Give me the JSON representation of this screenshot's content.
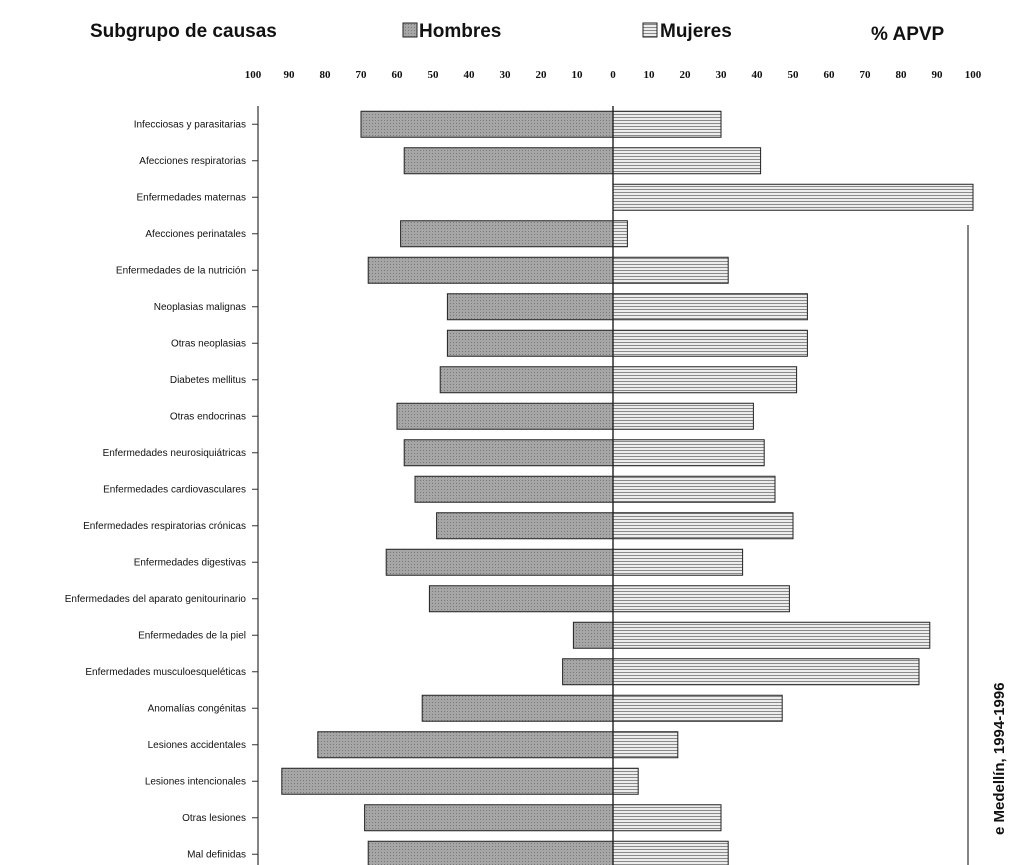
{
  "header": {
    "subgroup_label": "Subgrupo de causas",
    "men_label": "Hombres",
    "women_label": "Mujeres",
    "unit_label": "% APVP",
    "side_caption": "e Medellín,  1994-1996"
  },
  "colors": {
    "men_fill": "#a6a6a6",
    "women_fill": "#ececec",
    "women_stripe": "#8a8a8a",
    "stroke": "#222222"
  },
  "chart_data": {
    "type": "bar",
    "orientation": "horizontal",
    "layout": "butterfly",
    "legend_placement": "top",
    "xlim": [
      -100,
      100
    ],
    "xticks": [
      "100",
      "90",
      "80",
      "70",
      "60",
      "50",
      "40",
      "30",
      "20",
      "10",
      "0",
      "10",
      "20",
      "30",
      "40",
      "50",
      "60",
      "70",
      "80",
      "90",
      "100"
    ],
    "categories": [
      "Infecciosas y parasitarias",
      "Afecciones respiratorias",
      "Enfermedades maternas",
      "Afecciones perinatales",
      "Enfermedades de la nutrición",
      "Neoplasias malignas",
      "Otras neoplasias",
      "Diabetes mellitus",
      "Otras endocrinas",
      "Enfermedades neurosiquiátricas",
      "Enfermedades cardiovasculares",
      "Enfermedades respiratorias crónicas",
      "Enfermedades digestivas",
      "Enfermedades del aparato genitourinario",
      "Enfermedades de la piel",
      "Enfermedades musculoesqueléticas",
      "Anomalías congénitas",
      "Lesiones accidentales",
      "Lesiones intencionales",
      "Otras lesiones",
      "Mal definidas"
    ],
    "series": [
      {
        "name": "Hombres",
        "values": [
          70,
          58,
          0,
          59,
          68,
          46,
          46,
          48,
          60,
          58,
          55,
          49,
          63,
          51,
          11,
          14,
          53,
          82,
          92,
          69,
          68
        ]
      },
      {
        "name": "Mujeres",
        "values": [
          30,
          41,
          100,
          4,
          32,
          54,
          54,
          51,
          39,
          42,
          45,
          50,
          36,
          49,
          88,
          85,
          47,
          18,
          7,
          30,
          32
        ]
      }
    ]
  }
}
